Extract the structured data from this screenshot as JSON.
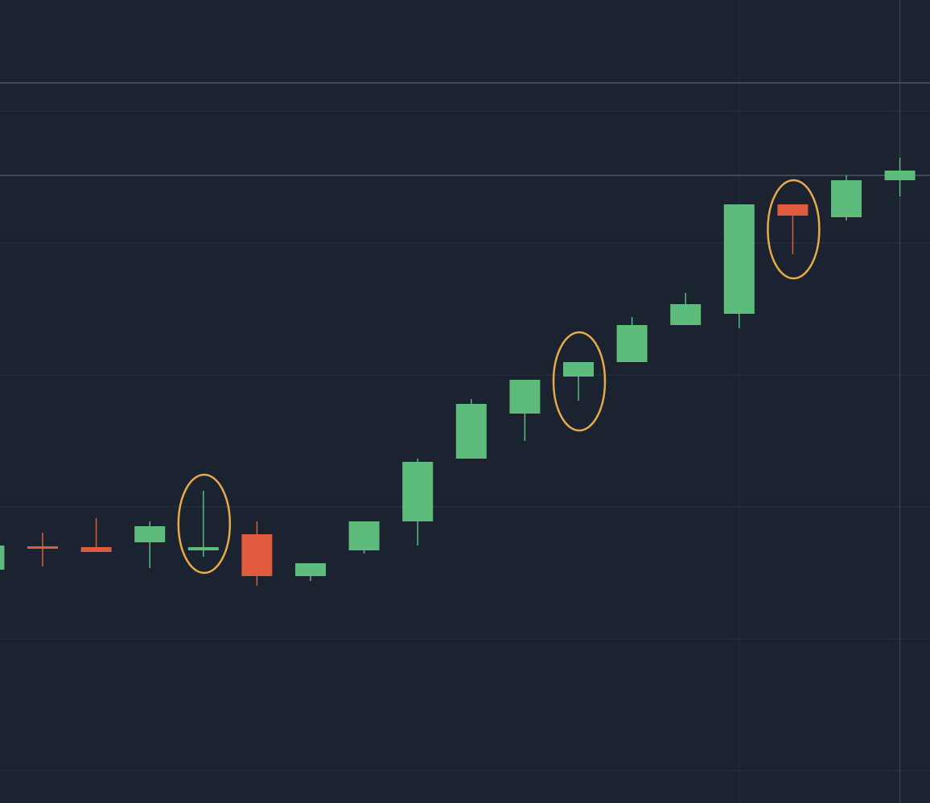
{
  "chart_data": {
    "type": "candlestick",
    "categories": [
      null,
      null,
      null,
      null,
      null,
      null,
      null,
      null,
      null,
      null,
      null,
      null,
      null,
      null,
      null,
      null,
      null,
      null
    ],
    "open": [
      29.0,
      31.9,
      31.8,
      32.4,
      31.4,
      33.4,
      28.2,
      31.4,
      35.0,
      42.8,
      48.4,
      53.0,
      54.8,
      59.4,
      60.8,
      74.4,
      72.8,
      77.4
    ],
    "close": [
      32.0,
      31.7,
      31.2,
      34.4,
      31.8,
      28.2,
      29.8,
      35.0,
      42.4,
      49.6,
      52.6,
      54.8,
      59.4,
      62.0,
      74.4,
      73.0,
      77.4,
      78.6
    ],
    "high": [
      32.0,
      33.6,
      35.4,
      35.0,
      38.8,
      35.0,
      29.8,
      35.0,
      42.8,
      50.2,
      52.6,
      54.8,
      60.4,
      63.4,
      74.4,
      74.4,
      78.0,
      80.2
    ],
    "low": [
      29.0,
      29.4,
      31.2,
      29.2,
      30.6,
      27.0,
      27.6,
      31.0,
      32.0,
      42.8,
      45.0,
      50.0,
      54.8,
      59.4,
      59.0,
      68.2,
      72.4,
      75.4
    ],
    "up_color": "#5dbb7b",
    "down_color": "#e05a3e",
    "ylim": [
      0,
      99.8
    ],
    "yticks": [
      4.0,
      20.4,
      36.8,
      53.2,
      69.6,
      86.0
    ],
    "tick_labels": false,
    "grid": true,
    "hlines": [
      89.5,
      78.0
    ],
    "vlines": [
      14,
      17
    ],
    "highlights": [
      4,
      11,
      15
    ],
    "highlight_color": "#e8a94a"
  }
}
